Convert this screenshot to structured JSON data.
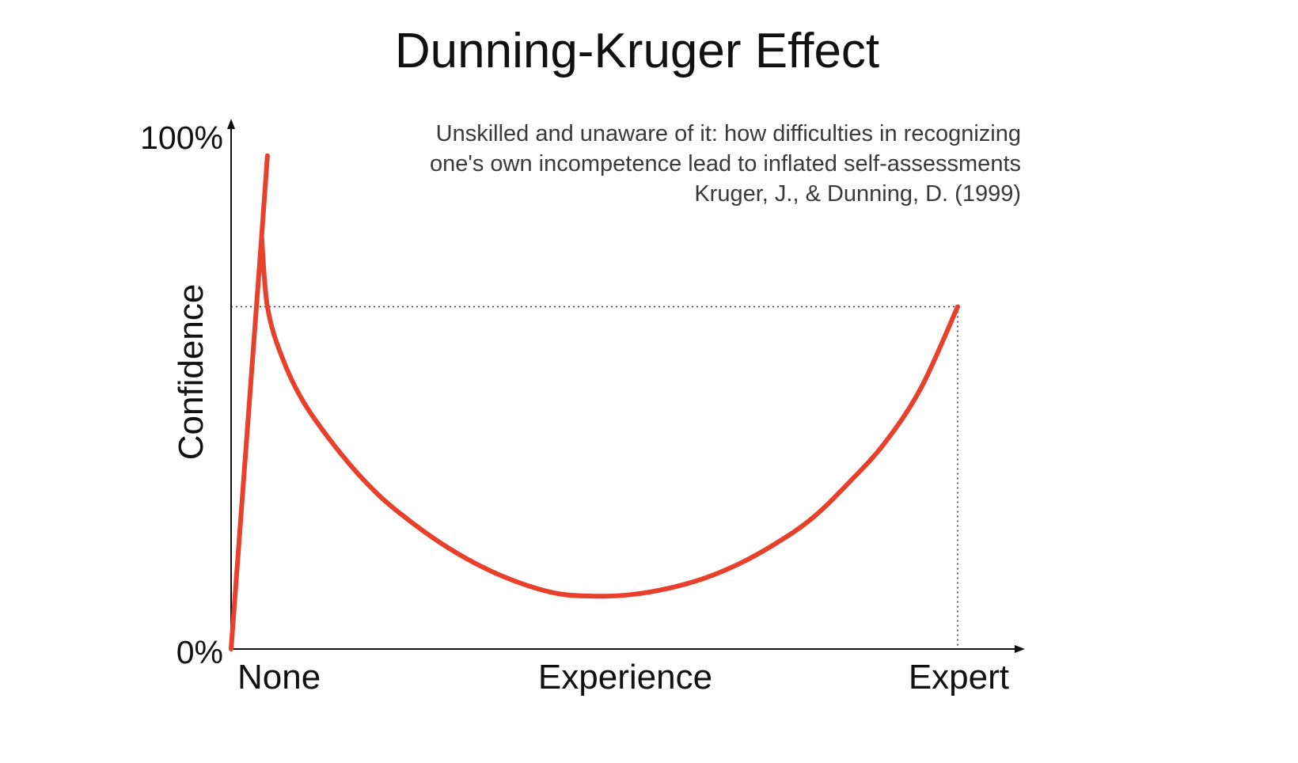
{
  "chart_data": {
    "type": "line",
    "title": "Dunning-Kruger Effect",
    "subtitle": [
      "Unskilled and unaware of it: how difficulties in recognizing",
      "one's own incompetence lead to inflated self-assessments",
      "Kruger, J., & Dunning, D. (1999)"
    ],
    "xlabel": "Experience",
    "ylabel": "Confidence",
    "x_tick_labels": [
      "None",
      "Experience",
      "Expert"
    ],
    "y_tick_labels": [
      "0%",
      "100%"
    ],
    "xlim": [
      0,
      100
    ],
    "ylim": [
      0,
      100
    ],
    "grid": false,
    "reference_lines": {
      "expert_confidence": 68,
      "expert_experience": 100
    },
    "series": [
      {
        "color": "#e8402a",
        "points": [
          [
            0,
            0
          ],
          [
            4.2,
            82
          ],
          [
            5.0,
            68
          ],
          [
            7,
            58
          ],
          [
            10,
            49
          ],
          [
            15,
            39
          ],
          [
            20,
            31
          ],
          [
            25,
            25
          ],
          [
            30,
            20
          ],
          [
            35,
            16
          ],
          [
            40,
            13
          ],
          [
            45,
            11
          ],
          [
            50,
            10.5
          ],
          [
            55,
            10.8
          ],
          [
            60,
            12
          ],
          [
            65,
            14
          ],
          [
            70,
            17
          ],
          [
            75,
            21
          ],
          [
            80,
            26
          ],
          [
            85,
            33
          ],
          [
            90,
            41
          ],
          [
            95,
            52
          ],
          [
            100,
            68
          ]
        ]
      },
      {
        "color": "#e8402a",
        "points": [
          [
            4.2,
            82
          ],
          [
            5.0,
            98
          ]
        ]
      }
    ]
  }
}
